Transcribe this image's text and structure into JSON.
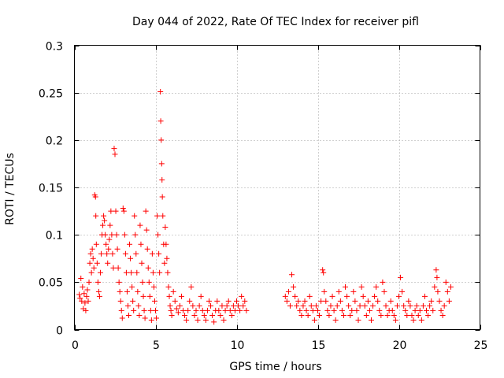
{
  "chart_data": {
    "type": "scatter",
    "title": "Day 044 of 2022, Rate Of TEC Index for receiver pifl",
    "xlabel": "GPS time / hours",
    "ylabel": "ROTI / TECUs",
    "xlim": [
      0,
      25
    ],
    "ylim": [
      0,
      0.3
    ],
    "grid": true,
    "marker": "+",
    "color": "#ff0000",
    "x_ticks": [
      0,
      5,
      10,
      15,
      20,
      25
    ],
    "x_tick_labels": [
      "0",
      "5",
      "10",
      "15",
      "20",
      "25"
    ],
    "y_ticks": [
      0,
      0.05,
      0.1,
      0.15,
      0.2,
      0.25,
      0.3
    ],
    "y_tick_labels": [
      "0",
      "0.05",
      "0.1",
      "0.15",
      "0.2",
      "0.25",
      "0.3"
    ],
    "series": [
      {
        "name": "pifl",
        "points": [
          [
            0.3,
            0.037
          ],
          [
            0.35,
            0.033
          ],
          [
            0.4,
            0.054
          ],
          [
            0.45,
            0.03
          ],
          [
            0.5,
            0.045
          ],
          [
            0.55,
            0.022
          ],
          [
            0.6,
            0.038
          ],
          [
            0.65,
            0.028
          ],
          [
            0.7,
            0.02
          ],
          [
            0.75,
            0.035
          ],
          [
            0.8,
            0.042
          ],
          [
            0.85,
            0.03
          ],
          [
            0.9,
            0.05
          ],
          [
            0.95,
            0.07
          ],
          [
            1.0,
            0.08
          ],
          [
            1.05,
            0.06
          ],
          [
            1.1,
            0.085
          ],
          [
            1.15,
            0.075
          ],
          [
            1.2,
            0.065
          ],
          [
            1.25,
            0.142
          ],
          [
            1.3,
            0.14
          ],
          [
            1.32,
            0.12
          ],
          [
            1.35,
            0.09
          ],
          [
            1.4,
            0.07
          ],
          [
            1.45,
            0.05
          ],
          [
            1.5,
            0.04
          ],
          [
            1.55,
            0.035
          ],
          [
            1.6,
            0.06
          ],
          [
            1.65,
            0.08
          ],
          [
            1.7,
            0.1
          ],
          [
            1.75,
            0.11
          ],
          [
            1.8,
            0.12
          ],
          [
            1.85,
            0.115
          ],
          [
            1.9,
            0.1
          ],
          [
            1.95,
            0.09
          ],
          [
            2.0,
            0.08
          ],
          [
            2.05,
            0.07
          ],
          [
            2.1,
            0.085
          ],
          [
            2.15,
            0.095
          ],
          [
            2.2,
            0.11
          ],
          [
            2.25,
            0.125
          ],
          [
            2.3,
            0.1
          ],
          [
            2.35,
            0.08
          ],
          [
            2.4,
            0.065
          ],
          [
            2.45,
            0.191
          ],
          [
            2.5,
            0.185
          ],
          [
            2.55,
            0.125
          ],
          [
            2.6,
            0.1
          ],
          [
            2.65,
            0.085
          ],
          [
            2.7,
            0.065
          ],
          [
            2.75,
            0.05
          ],
          [
            2.8,
            0.04
          ],
          [
            2.85,
            0.03
          ],
          [
            2.9,
            0.02
          ],
          [
            2.95,
            0.012
          ],
          [
            3.0,
            0.128
          ],
          [
            3.05,
            0.125
          ],
          [
            3.1,
            0.1
          ],
          [
            3.15,
            0.08
          ],
          [
            3.2,
            0.06
          ],
          [
            3.25,
            0.04
          ],
          [
            3.3,
            0.025
          ],
          [
            3.35,
            0.015
          ],
          [
            3.4,
            0.09
          ],
          [
            3.45,
            0.075
          ],
          [
            3.5,
            0.06
          ],
          [
            3.55,
            0.045
          ],
          [
            3.6,
            0.03
          ],
          [
            3.65,
            0.02
          ],
          [
            3.7,
            0.12
          ],
          [
            3.75,
            0.1
          ],
          [
            3.8,
            0.08
          ],
          [
            3.85,
            0.06
          ],
          [
            3.9,
            0.04
          ],
          [
            3.95,
            0.025
          ],
          [
            4.0,
            0.015
          ],
          [
            4.05,
            0.11
          ],
          [
            4.1,
            0.09
          ],
          [
            4.15,
            0.07
          ],
          [
            4.2,
            0.05
          ],
          [
            4.25,
            0.035
          ],
          [
            4.3,
            0.02
          ],
          [
            4.35,
            0.012
          ],
          [
            4.4,
            0.125
          ],
          [
            4.45,
            0.105
          ],
          [
            4.5,
            0.085
          ],
          [
            4.55,
            0.065
          ],
          [
            4.6,
            0.05
          ],
          [
            4.65,
            0.035
          ],
          [
            4.7,
            0.02
          ],
          [
            4.75,
            0.01
          ],
          [
            4.8,
            0.08
          ],
          [
            4.85,
            0.06
          ],
          [
            4.9,
            0.045
          ],
          [
            4.95,
            0.03
          ],
          [
            5.0,
            0.02
          ],
          [
            5.05,
            0.012
          ],
          [
            5.1,
            0.12
          ],
          [
            5.15,
            0.1
          ],
          [
            5.2,
            0.08
          ],
          [
            5.25,
            0.06
          ],
          [
            5.3,
            0.251
          ],
          [
            5.32,
            0.22
          ],
          [
            5.35,
            0.2
          ],
          [
            5.38,
            0.175
          ],
          [
            5.4,
            0.158
          ],
          [
            5.42,
            0.14
          ],
          [
            5.45,
            0.12
          ],
          [
            5.5,
            0.09
          ],
          [
            5.55,
            0.07
          ],
          [
            5.6,
            0.108
          ],
          [
            5.65,
            0.09
          ],
          [
            5.7,
            0.075
          ],
          [
            5.75,
            0.06
          ],
          [
            5.8,
            0.045
          ],
          [
            5.85,
            0.035
          ],
          [
            5.9,
            0.025
          ],
          [
            5.95,
            0.02
          ],
          [
            6.0,
            0.015
          ],
          [
            6.1,
            0.04
          ],
          [
            6.2,
            0.03
          ],
          [
            6.3,
            0.022
          ],
          [
            6.4,
            0.018
          ],
          [
            6.5,
            0.025
          ],
          [
            6.6,
            0.035
          ],
          [
            6.7,
            0.02
          ],
          [
            6.8,
            0.015
          ],
          [
            6.9,
            0.01
          ],
          [
            7.0,
            0.02
          ],
          [
            7.1,
            0.03
          ],
          [
            7.2,
            0.045
          ],
          [
            7.3,
            0.025
          ],
          [
            7.4,
            0.015
          ],
          [
            7.5,
            0.02
          ],
          [
            7.6,
            0.01
          ],
          [
            7.7,
            0.025
          ],
          [
            7.8,
            0.035
          ],
          [
            7.9,
            0.02
          ],
          [
            8.0,
            0.015
          ],
          [
            8.1,
            0.01
          ],
          [
            8.2,
            0.02
          ],
          [
            8.3,
            0.03
          ],
          [
            8.4,
            0.025
          ],
          [
            8.5,
            0.015
          ],
          [
            8.6,
            0.008
          ],
          [
            8.7,
            0.02
          ],
          [
            8.8,
            0.03
          ],
          [
            8.9,
            0.02
          ],
          [
            9.0,
            0.015
          ],
          [
            9.1,
            0.025
          ],
          [
            9.2,
            0.01
          ],
          [
            9.3,
            0.02
          ],
          [
            9.4,
            0.025
          ],
          [
            9.5,
            0.03
          ],
          [
            9.6,
            0.02
          ],
          [
            9.7,
            0.015
          ],
          [
            9.8,
            0.025
          ],
          [
            9.9,
            0.02
          ],
          [
            10.0,
            0.03
          ],
          [
            10.1,
            0.025
          ],
          [
            10.2,
            0.02
          ],
          [
            10.3,
            0.035
          ],
          [
            10.4,
            0.025
          ],
          [
            10.5,
            0.03
          ],
          [
            10.6,
            0.02
          ],
          [
            13.0,
            0.035
          ],
          [
            13.1,
            0.03
          ],
          [
            13.2,
            0.04
          ],
          [
            13.3,
            0.025
          ],
          [
            13.4,
            0.058
          ],
          [
            13.5,
            0.045
          ],
          [
            13.6,
            0.035
          ],
          [
            13.7,
            0.025
          ],
          [
            13.8,
            0.03
          ],
          [
            13.9,
            0.02
          ],
          [
            14.0,
            0.015
          ],
          [
            14.1,
            0.025
          ],
          [
            14.2,
            0.03
          ],
          [
            14.3,
            0.02
          ],
          [
            14.4,
            0.015
          ],
          [
            14.5,
            0.035
          ],
          [
            14.6,
            0.025
          ],
          [
            14.7,
            0.02
          ],
          [
            14.8,
            0.01
          ],
          [
            14.9,
            0.025
          ],
          [
            15.0,
            0.02
          ],
          [
            15.1,
            0.015
          ],
          [
            15.2,
            0.03
          ],
          [
            15.3,
            0.063
          ],
          [
            15.35,
            0.06
          ],
          [
            15.4,
            0.04
          ],
          [
            15.5,
            0.03
          ],
          [
            15.6,
            0.02
          ],
          [
            15.7,
            0.015
          ],
          [
            15.8,
            0.025
          ],
          [
            15.9,
            0.035
          ],
          [
            16.0,
            0.02
          ],
          [
            16.1,
            0.01
          ],
          [
            16.2,
            0.025
          ],
          [
            16.3,
            0.04
          ],
          [
            16.4,
            0.03
          ],
          [
            16.5,
            0.02
          ],
          [
            16.6,
            0.015
          ],
          [
            16.7,
            0.045
          ],
          [
            16.8,
            0.035
          ],
          [
            16.9,
            0.025
          ],
          [
            17.0,
            0.015
          ],
          [
            17.1,
            0.02
          ],
          [
            17.2,
            0.04
          ],
          [
            17.3,
            0.03
          ],
          [
            17.4,
            0.02
          ],
          [
            17.5,
            0.01
          ],
          [
            17.6,
            0.025
          ],
          [
            17.7,
            0.045
          ],
          [
            17.8,
            0.035
          ],
          [
            17.9,
            0.025
          ],
          [
            18.0,
            0.015
          ],
          [
            18.1,
            0.03
          ],
          [
            18.2,
            0.02
          ],
          [
            18.3,
            0.01
          ],
          [
            18.4,
            0.025
          ],
          [
            18.5,
            0.035
          ],
          [
            18.6,
            0.045
          ],
          [
            18.7,
            0.03
          ],
          [
            18.8,
            0.02
          ],
          [
            18.9,
            0.015
          ],
          [
            19.0,
            0.05
          ],
          [
            19.1,
            0.04
          ],
          [
            19.2,
            0.025
          ],
          [
            19.3,
            0.015
          ],
          [
            19.4,
            0.02
          ],
          [
            19.5,
            0.03
          ],
          [
            19.6,
            0.02
          ],
          [
            19.7,
            0.015
          ],
          [
            19.8,
            0.01
          ],
          [
            19.9,
            0.025
          ],
          [
            20.0,
            0.035
          ],
          [
            20.1,
            0.055
          ],
          [
            20.2,
            0.04
          ],
          [
            20.3,
            0.025
          ],
          [
            20.4,
            0.02
          ],
          [
            20.5,
            0.015
          ],
          [
            20.6,
            0.03
          ],
          [
            20.7,
            0.025
          ],
          [
            20.8,
            0.015
          ],
          [
            20.9,
            0.01
          ],
          [
            21.0,
            0.02
          ],
          [
            21.1,
            0.025
          ],
          [
            21.2,
            0.015
          ],
          [
            21.3,
            0.02
          ],
          [
            21.4,
            0.01
          ],
          [
            21.5,
            0.025
          ],
          [
            21.6,
            0.035
          ],
          [
            21.7,
            0.02
          ],
          [
            21.8,
            0.015
          ],
          [
            21.9,
            0.025
          ],
          [
            22.0,
            0.03
          ],
          [
            22.1,
            0.02
          ],
          [
            22.2,
            0.045
          ],
          [
            22.3,
            0.063
          ],
          [
            22.35,
            0.055
          ],
          [
            22.4,
            0.04
          ],
          [
            22.5,
            0.03
          ],
          [
            22.6,
            0.02
          ],
          [
            22.7,
            0.015
          ],
          [
            22.8,
            0.025
          ],
          [
            22.9,
            0.05
          ],
          [
            23.0,
            0.04
          ],
          [
            23.1,
            0.03
          ],
          [
            23.2,
            0.045
          ]
        ]
      }
    ]
  }
}
